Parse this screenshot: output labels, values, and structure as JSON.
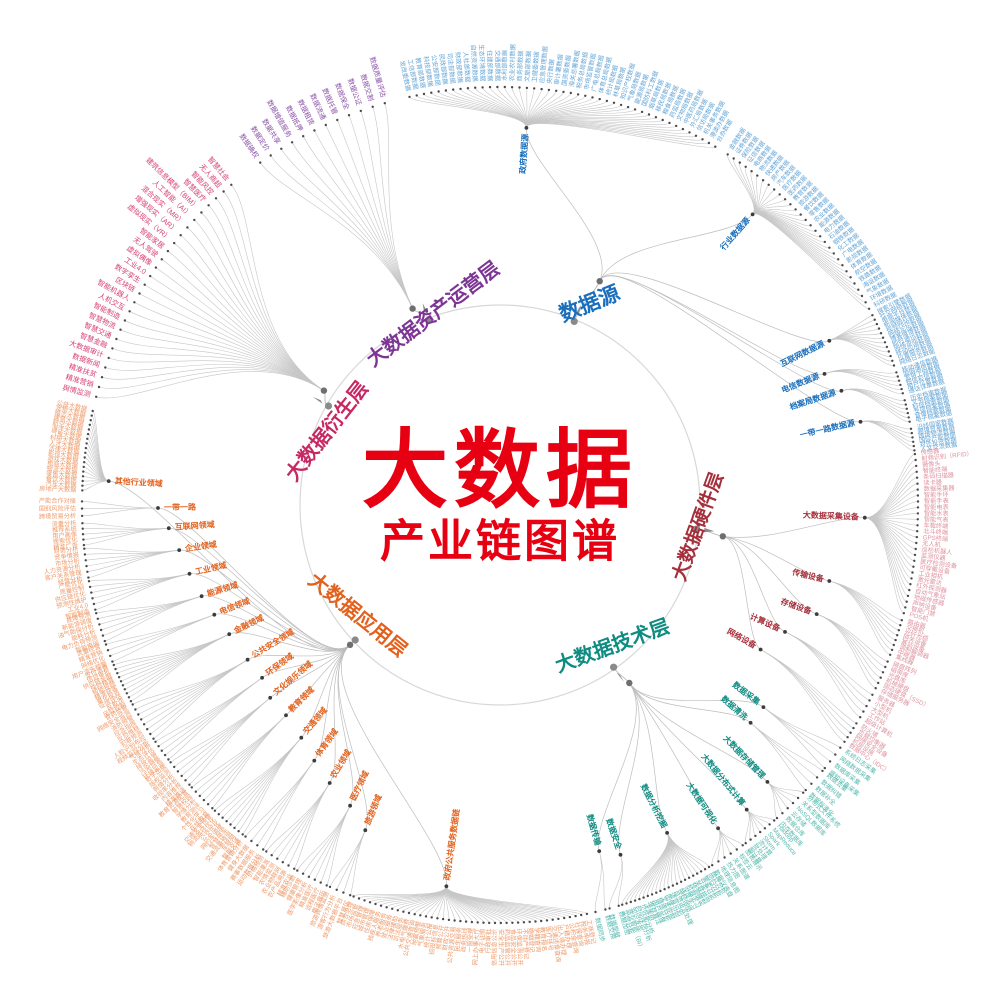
{
  "center": {
    "title": "大数据",
    "subtitle": "产业链图谱",
    "color": "#e60012"
  },
  "branches": [
    {
      "id": "datasource",
      "name": "数据源",
      "color": "#1a6fbd",
      "leafColor": "#64a5d6",
      "subs": [
        {
          "name": "政府数据源",
          "leaves": [
            "发改委数据",
            "工信部数据",
            "教育部数据",
            "科技部数据",
            "公安部数据",
            "民政部数据",
            "司法部数据",
            "财政部数据",
            "人社部数据",
            "自然资源数据",
            "生态环境数据",
            "住建部数据",
            "交通部数据",
            "水利部数据",
            "农业农村数据",
            "商务部数据",
            "文旅部数据",
            "卫健委数据",
            "应急管理数据",
            "央行数据",
            "审计署数据",
            "国资委数据",
            "海关总署数据",
            "税务总局数据",
            "市场监管数据",
            "广电总局数据",
            "体育总局数据",
            "统计局数据",
            "林草局数据",
            "知识产权数据",
            "气象局数据",
            "能源局数据",
            "国防科工数据",
            "烟草局数据",
            "移民局数据",
            "粮食局数据",
            "药监局数据",
            "文物局数据",
            "中医药局数据",
            "外汇局数据",
            "信访局数据",
            "机关事务数据",
            "港澳办数据",
            "台办数据"
          ]
        },
        {
          "name": "行业数据源",
          "leaves": [
            "金融数据",
            "证券数据",
            "保险数据",
            "征信数据",
            "电商数据",
            "物流数据",
            "快递数据",
            "房产数据",
            "汽车数据",
            "医疗数据",
            "医药数据",
            "教育数据",
            "旅游数据",
            "餐饮数据",
            "零售数据",
            "农业数据",
            "能源数据",
            "电力数据",
            "石油数据",
            "钢铁数据",
            "化工数据",
            "广电数据",
            "影视数据",
            "体育数据",
            "航空数据",
            "铁路数据",
            "海运数据",
            "气象数据",
            "环境数据",
            "科研数据"
          ]
        },
        {
          "name": "互联网数据源",
          "leaves": [
            "搜索引擎数据",
            "社交网络数据",
            "电商平台数据",
            "新闻媒体数据",
            "视频网站数据",
            "网络论坛数据",
            "博客微博数据",
            "即时通讯数据",
            "网络游戏数据",
            "移动应用数据",
            "位置服务数据",
            "网络日志数据"
          ]
        },
        {
          "name": "电信数据源",
          "leaves": [
            "移动通信数据",
            "固网通信数据",
            "宽带上网数据",
            "短信彩信数据",
            "用户位置数据",
            "通话详单数据"
          ]
        },
        {
          "name": "档案局数据源",
          "leaves": [
            "历史档案数据",
            "文书档案数据",
            "科技档案数据",
            "专项档案数据",
            "音像档案数据",
            "电子档案数据"
          ]
        },
        {
          "name": "一带一路数据源",
          "leaves": [
            "沿线国家数据",
            "跨境贸易数据",
            "跨境物流数据",
            "国际产能数据",
            "对外投资数据",
            "人文交流数据"
          ]
        }
      ]
    },
    {
      "id": "hardware",
      "name": "大数据硬件层",
      "color": "#a5303c",
      "leafColor": "#de939f",
      "subs": [
        {
          "name": "大数据采集设备",
          "leaves": [
            "传感器",
            "射频识别（RFID）",
            "摄像头",
            "智能终端",
            "条码扫描器",
            "读卡器",
            "数据采集器",
            "智能手环",
            "智能手表",
            "智能电表",
            "智能水表",
            "智能气表",
            "车载终端",
            "北斗终端",
            "GPS终端",
            "无人机",
            "巡检机器人",
            "监测仪器",
            "医疗检测设备",
            "可穿戴设备",
            "工业相机",
            "激光雷达",
            "红外探测器",
            "自动气象站",
            "地磁传感器",
            "声呐设备",
            "智能门禁",
            "POS机"
          ]
        },
        {
          "name": "传输设备",
          "leaves": [
            "路由器",
            "交换机",
            "光纤光缆",
            "网关设备",
            "基站设备",
            "调制解调器",
            "中继器",
            "集线器"
          ]
        },
        {
          "name": "存储设备",
          "leaves": [
            "磁盘阵列",
            "磁带库",
            "光盘库",
            "机械硬盘",
            "固态硬盘（SSD）",
            "存储服务器"
          ]
        },
        {
          "name": "计算设备",
          "leaves": [
            "服务器",
            "小型机",
            "大型机",
            "工作站",
            "超级计算机"
          ]
        },
        {
          "name": "网络设备",
          "leaves": [
            "防火墙",
            "负载均衡器",
            "网络安全设备",
            "机房设施",
            "数据中心（IDC）"
          ]
        }
      ]
    },
    {
      "id": "technology",
      "name": "大数据技术层",
      "color": "#0f8c82",
      "leafColor": "#55b9af",
      "subs": [
        {
          "name": "数据采集",
          "leaves": [
            "系统日志采集",
            "网络数据采集",
            "数据库采集",
            "感知设备采集"
          ]
        },
        {
          "name": "数据清洗",
          "leaves": [
            "数据去重",
            "数据纠错",
            "数据补全",
            "数据标准化"
          ]
        },
        {
          "name": "大数据存储管理",
          "leaves": [
            "分布式文件系统",
            "关系型数据库",
            "NoSQL数据库",
            "云存储",
            "数据仓库",
            "内存数据库"
          ]
        },
        {
          "name": "大数据分布式计算",
          "leaves": [
            "Hadoop",
            "MapReduce",
            "Spark",
            "Storm",
            "流计算",
            "批处理",
            "图计算"
          ]
        },
        {
          "name": "大数据可视化",
          "leaves": [
            "图表展示",
            "标签云",
            "关系图谱",
            "热力图",
            "地理信息图",
            "数据仪表盘"
          ]
        },
        {
          "name": "数据分析挖掘",
          "leaves": [
            "统计分析",
            "回归分析",
            "聚类分析",
            "分类分析",
            "关联规则",
            "预测模型",
            "机器学习",
            "深度学习",
            "神经网络",
            "自然语言处理",
            "语音识别",
            "图像识别",
            "文本挖掘",
            "情感分析",
            "用户画像",
            "推荐算法",
            "决策树",
            "贝叶斯分析",
            "时间序列分析",
            "知识发现",
            "商业智能（BI）",
            "实时分析"
          ]
        },
        {
          "name": "数据安全",
          "leaves": [
            "数据加密",
            "数据脱敏"
          ]
        },
        {
          "name": "数据传输",
          "leaves": [
            "数据交换",
            "数据同步"
          ]
        }
      ]
    },
    {
      "id": "application",
      "name": "大数据应用层",
      "color": "#e2611c",
      "leafColor": "#ee9b6b",
      "subs": [
        {
          "name": "政府公共服务数据链",
          "leaves": [
            "工商登记",
            "税务申报",
            "社保查询",
            "公积金查询",
            "户籍办理",
            "出入境办理",
            "交通违章查询",
            "医疗挂号",
            "教育报名",
            "学籍查询",
            "婚姻登记",
            "不动产登记",
            "环保监测公开",
            "食品安全公开",
            "药品监管公开",
            "安全生产公开",
            "信用信息公示",
            "行政审批",
            "电子证照",
            "网上办事大厅",
            "一窗受理",
            "政务热线",
            "民生服务",
            "公共资源交易",
            "财政公开",
            "预算公开",
            "招投标信息",
            "统计公报",
            "气象服务",
            "地震预警",
            "公共交通查询",
            "水电气缴费",
            "司法服务",
            "法律援助",
            "就业服务",
            "养老服务",
            "残疾人服务",
            "住房保障",
            "城市管理",
            "应急管理",
            "市场监管",
            "综合治理"
          ]
        },
        {
          "name": "旅游领域",
          "leaves": [
            "智慧景区",
            "旅游大数据平台",
            "游客行为分析",
            "旅游舆情监测"
          ]
        },
        {
          "name": "医疗领域",
          "leaves": [
            "电子病历",
            "远程医疗",
            "精准医疗",
            "医学影像分析",
            "健康管理",
            "辅助诊断"
          ]
        },
        {
          "name": "农业领域",
          "leaves": [
            "精准农业",
            "农产品溯源",
            "农业物联网",
            "农情监测",
            "智能灌溉",
            "价格预测"
          ]
        },
        {
          "name": "体育领域",
          "leaves": [
            "运动数据分析",
            "赛事数据服务",
            "健身大数据",
            "体育营销分析"
          ]
        },
        {
          "name": "交通领域",
          "leaves": [
            "智能交通",
            "车联网",
            "交通流量预测",
            "智慧停车",
            "网约车调度",
            "公交优化",
            "物流路径优化",
            "交通安全预警"
          ]
        },
        {
          "name": "教育领域",
          "leaves": [
            "在线教育",
            "个性化学习",
            "教育测评",
            "学情分析",
            "智慧校园",
            "教育资源配置"
          ]
        },
        {
          "name": "文化娱乐领域",
          "leaves": [
            "精准推送",
            "内容推荐",
            "收视率分析",
            "舆情分析",
            "版权监测",
            "数字出版"
          ]
        },
        {
          "name": "环保领域",
          "leaves": [
            "环境监测",
            "污染预警",
            "排放监管",
            "生态评估",
            "气候分析"
          ]
        },
        {
          "name": "公共安全领域",
          "leaves": [
            "视频监控分析",
            "人脸识别布控",
            "犯罪预测",
            "反恐维稳",
            "应急指挥",
            "消防预警",
            "网络安全监测",
            "食药监管"
          ]
        },
        {
          "name": "金融领域",
          "leaves": [
            "风险控制",
            "反欺诈",
            "征信评估",
            "量化投资",
            "精准获客",
            "智能投顾",
            "保险精算",
            "供应链金融",
            "信贷审批",
            "支付清算"
          ]
        },
        {
          "name": "电信领域",
          "leaves": [
            "用户流失预警",
            "网络优化",
            "精准营销",
            "流量经营"
          ]
        },
        {
          "name": "能源领域",
          "leaves": [
            "智能电网",
            "电力负荷预测",
            "能耗分析",
            "油气勘探分析",
            "新能源调度",
            "故障预测"
          ]
        },
        {
          "name": "工业领域",
          "leaves": [
            "智能制造",
            "工业4.0",
            "预测性维护",
            "供应链优化",
            "质量控制",
            "产能优化"
          ]
        },
        {
          "name": "企业领域",
          "leaves": [
            "经营分析",
            "客户关系管理",
            "人力资源分析",
            "市场分析",
            "竞争情报",
            "财务分析"
          ]
        },
        {
          "name": "互联网领域",
          "leaves": [
            "精准广告",
            "搜索优化",
            "用户画像",
            "推荐系统",
            "流量分析"
          ]
        },
        {
          "name": "一带一路",
          "leaves": [
            "跨境贸易分析",
            "国别风险评估",
            "产能合作对接"
          ]
        },
        {
          "name": "其他行业领域",
          "leaves": [
            "房地产大数据",
            "汽车大数据",
            "餐饮大数据",
            "零售大数据",
            "物流大数据",
            "电商大数据",
            "游戏大数据",
            "影视大数据",
            "法律大数据",
            "人才大数据",
            "科研大数据",
            "气象大数据",
            "海洋大数据",
            "航空大数据",
            "建筑大数据",
            "婚恋大数据",
            "宠物大数据",
            "公益大数据"
          ]
        }
      ]
    },
    {
      "id": "derivative",
      "name": "大数据衍生层",
      "color": "#c72862",
      "leafColor": "#d64277",
      "leaves": [
        "舆情监测",
        "精准营销",
        "精准扶贫",
        "数据新闻",
        "大数据审计",
        "智慧金融",
        "智慧交通",
        "智慧物流",
        "智能制造",
        "人机交互",
        "智能机器人",
        "区块链",
        "数字孪生",
        "工业4.0",
        "虚拟偶像",
        "无人驾驶",
        "智能家居",
        "虚拟现实（VR）",
        "增强现实（AR）",
        "混合现实（MR）",
        "人工智能（AI）",
        "建筑信息模型（BIM）",
        "智慧医疗",
        "智能风控",
        "无人商超",
        "智慧社会"
      ]
    },
    {
      "id": "asset",
      "name": "大数据资产运营层",
      "color": "#7d3594",
      "leafColor": "#8d55a8",
      "leaves": [
        "数据确权",
        "数据定价",
        "数据共享",
        "数据增值服务",
        "数据抵押",
        "数据租赁",
        "数据流通",
        "数据托管",
        "数据保全",
        "数据公证",
        "数据交割",
        "数据质量评估"
      ]
    }
  ]
}
